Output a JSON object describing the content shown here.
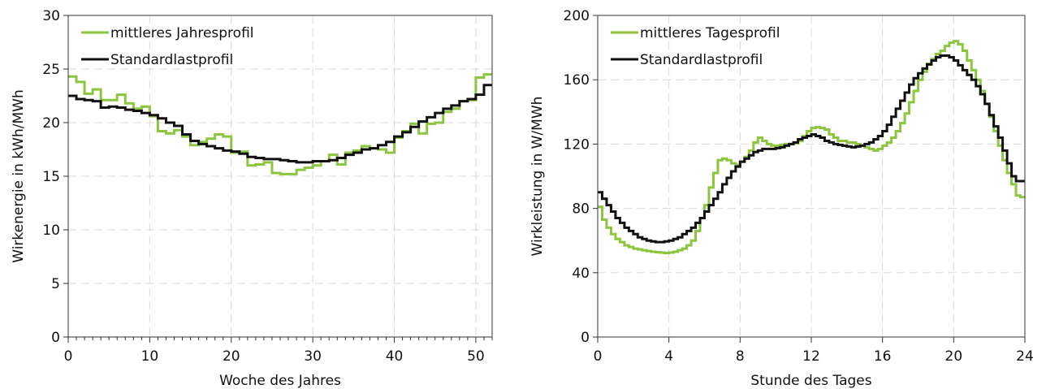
{
  "chart_data": [
    {
      "type": "line",
      "step": true,
      "xlabel": "Woche des Jahres",
      "ylabel": "Wirkenergie in kWh/MWh",
      "xlim": [
        0,
        52
      ],
      "ylim": [
        0,
        30
      ],
      "xticks": [
        0,
        10,
        20,
        30,
        40,
        50
      ],
      "yticks": [
        0,
        5,
        10,
        15,
        20,
        25,
        30
      ],
      "grid": true,
      "legend_position": "top-left",
      "series": [
        {
          "name": "mittleres Jahresprofil",
          "color": "#8cc63f",
          "x": [
            0,
            1,
            2,
            3,
            4,
            5,
            6,
            7,
            8,
            9,
            10,
            11,
            12,
            13,
            14,
            15,
            16,
            17,
            18,
            19,
            20,
            21,
            22,
            23,
            24,
            25,
            26,
            27,
            28,
            29,
            30,
            31,
            32,
            33,
            34,
            35,
            36,
            37,
            38,
            39,
            40,
            41,
            42,
            43,
            44,
            45,
            46,
            47,
            48,
            49,
            50,
            51
          ],
          "y": [
            24.3,
            23.8,
            22.7,
            23.1,
            22.1,
            22.1,
            22.6,
            21.8,
            21.3,
            21.5,
            20.6,
            19.2,
            19.0,
            19.3,
            18.7,
            17.9,
            18.2,
            18.5,
            18.9,
            18.7,
            17.2,
            17.3,
            16.0,
            16.1,
            16.3,
            15.3,
            15.2,
            15.2,
            15.6,
            15.8,
            16.0,
            16.4,
            17.0,
            16.1,
            17.2,
            17.4,
            17.8,
            17.6,
            17.5,
            17.2,
            18.6,
            19.2,
            19.9,
            19.0,
            19.9,
            20.0,
            21.0,
            21.3,
            22.0,
            22.1,
            24.2,
            24.5
          ]
        },
        {
          "name": "Standardlastprofil",
          "color": "#111111",
          "x": [
            0,
            1,
            2,
            3,
            4,
            5,
            6,
            7,
            8,
            9,
            10,
            11,
            12,
            13,
            14,
            15,
            16,
            17,
            18,
            19,
            20,
            21,
            22,
            23,
            24,
            25,
            26,
            27,
            28,
            29,
            30,
            31,
            32,
            33,
            34,
            35,
            36,
            37,
            38,
            39,
            40,
            41,
            42,
            43,
            44,
            45,
            46,
            47,
            48,
            49,
            50,
            51
          ],
          "y": [
            22.5,
            22.2,
            22.1,
            22.0,
            21.4,
            21.5,
            21.4,
            21.2,
            21.1,
            20.9,
            20.7,
            20.4,
            20.0,
            19.7,
            18.9,
            18.3,
            18.0,
            17.8,
            17.6,
            17.4,
            17.3,
            17.1,
            16.8,
            16.7,
            16.6,
            16.6,
            16.5,
            16.4,
            16.3,
            16.3,
            16.4,
            16.4,
            16.5,
            16.7,
            17.0,
            17.2,
            17.5,
            17.6,
            17.9,
            18.2,
            18.7,
            19.1,
            19.6,
            20.1,
            20.5,
            20.9,
            21.3,
            21.6,
            22.0,
            22.2,
            22.6,
            23.5
          ]
        }
      ]
    },
    {
      "type": "line",
      "step": true,
      "xlabel": "Stunde des Tages",
      "ylabel": "Wirkleistung in W/MWh",
      "xlim": [
        0,
        24
      ],
      "ylim": [
        0,
        200
      ],
      "xticks": [
        0,
        4,
        8,
        12,
        16,
        20,
        24
      ],
      "yticks": [
        0,
        40,
        80,
        120,
        160,
        200
      ],
      "grid": true,
      "legend_position": "top-left",
      "series": [
        {
          "name": "mittleres Tagesprofil",
          "color": "#8cc63f",
          "x": [
            0,
            0.25,
            0.5,
            0.75,
            1,
            1.25,
            1.5,
            1.75,
            2,
            2.25,
            2.5,
            2.75,
            3,
            3.25,
            3.5,
            3.75,
            4,
            4.25,
            4.5,
            4.75,
            5,
            5.25,
            5.5,
            5.75,
            6,
            6.25,
            6.5,
            6.75,
            7,
            7.25,
            7.5,
            7.75,
            8,
            8.25,
            8.5,
            8.75,
            9,
            9.25,
            9.5,
            9.75,
            10,
            10.25,
            10.5,
            10.75,
            11,
            11.25,
            11.5,
            11.75,
            12,
            12.25,
            12.5,
            12.75,
            13,
            13.25,
            13.5,
            13.75,
            14,
            14.25,
            14.5,
            14.75,
            15,
            15.25,
            15.5,
            15.75,
            16,
            16.25,
            16.5,
            16.75,
            17,
            17.25,
            17.5,
            17.75,
            18,
            18.25,
            18.5,
            18.75,
            19,
            19.25,
            19.5,
            19.75,
            20,
            20.25,
            20.5,
            20.75,
            21,
            21.25,
            21.5,
            21.75,
            22,
            22.25,
            22.5,
            22.75,
            23,
            23.25,
            23.5,
            23.75
          ],
          "y": [
            81,
            73,
            68,
            64,
            61,
            59,
            57,
            56,
            55,
            54.5,
            54,
            53.5,
            53,
            52.7,
            52.5,
            52.3,
            52.5,
            53,
            54,
            55,
            57,
            60,
            66,
            74,
            82,
            93,
            102,
            110,
            111,
            110,
            108,
            107,
            109,
            112,
            116,
            121,
            124,
            122,
            120,
            119,
            119,
            119.5,
            120,
            120,
            120.5,
            122,
            125,
            128,
            130,
            130.5,
            130,
            129,
            126,
            124,
            122,
            122,
            121,
            121,
            120,
            119,
            118,
            117,
            116,
            117,
            119,
            121,
            124,
            128,
            133,
            139,
            146,
            153,
            160,
            165,
            170,
            173,
            176,
            178,
            181,
            183,
            184,
            182,
            178,
            172,
            166,
            160,
            153,
            145,
            137,
            128,
            119,
            110,
            102,
            95,
            88,
            87
          ]
        },
        {
          "name": "Standardlastprofil",
          "color": "#111111",
          "x": [
            0,
            0.25,
            0.5,
            0.75,
            1,
            1.25,
            1.5,
            1.75,
            2,
            2.25,
            2.5,
            2.75,
            3,
            3.25,
            3.5,
            3.75,
            4,
            4.25,
            4.5,
            4.75,
            5,
            5.25,
            5.5,
            5.75,
            6,
            6.25,
            6.5,
            6.75,
            7,
            7.25,
            7.5,
            7.75,
            8,
            8.25,
            8.5,
            8.75,
            9,
            9.25,
            9.5,
            9.75,
            10,
            10.25,
            10.5,
            10.75,
            11,
            11.25,
            11.5,
            11.75,
            12,
            12.25,
            12.5,
            12.75,
            13,
            13.25,
            13.5,
            13.75,
            14,
            14.25,
            14.5,
            14.75,
            15,
            15.25,
            15.5,
            15.75,
            16,
            16.25,
            16.5,
            16.75,
            17,
            17.25,
            17.5,
            17.75,
            18,
            18.25,
            18.5,
            18.75,
            19,
            19.25,
            19.5,
            19.75,
            20,
            20.25,
            20.5,
            20.75,
            21,
            21.25,
            21.5,
            21.75,
            22,
            22.25,
            22.5,
            22.75,
            23,
            23.25,
            23.5,
            23.75
          ],
          "y": [
            90,
            86,
            82,
            78,
            74,
            71,
            68,
            66,
            64,
            62,
            61,
            60,
            59.5,
            59,
            59,
            59.5,
            60,
            61,
            62,
            64,
            66,
            68,
            71,
            74,
            78,
            82,
            86,
            90,
            95,
            99,
            103,
            106,
            109,
            111,
            113,
            115,
            116,
            117,
            117,
            117,
            117.5,
            118,
            119,
            120,
            121,
            123,
            124,
            125,
            126,
            125,
            124,
            122,
            121,
            120,
            119.5,
            119,
            118.5,
            118,
            118.5,
            119,
            120,
            121,
            123,
            125,
            128,
            132,
            137,
            142,
            147,
            152,
            157,
            161,
            164,
            167,
            169.5,
            172,
            174,
            175,
            175,
            174,
            172,
            169,
            166,
            163,
            160,
            156,
            151,
            145,
            138,
            131,
            124,
            116,
            108,
            100,
            97,
            97
          ]
        }
      ]
    }
  ]
}
